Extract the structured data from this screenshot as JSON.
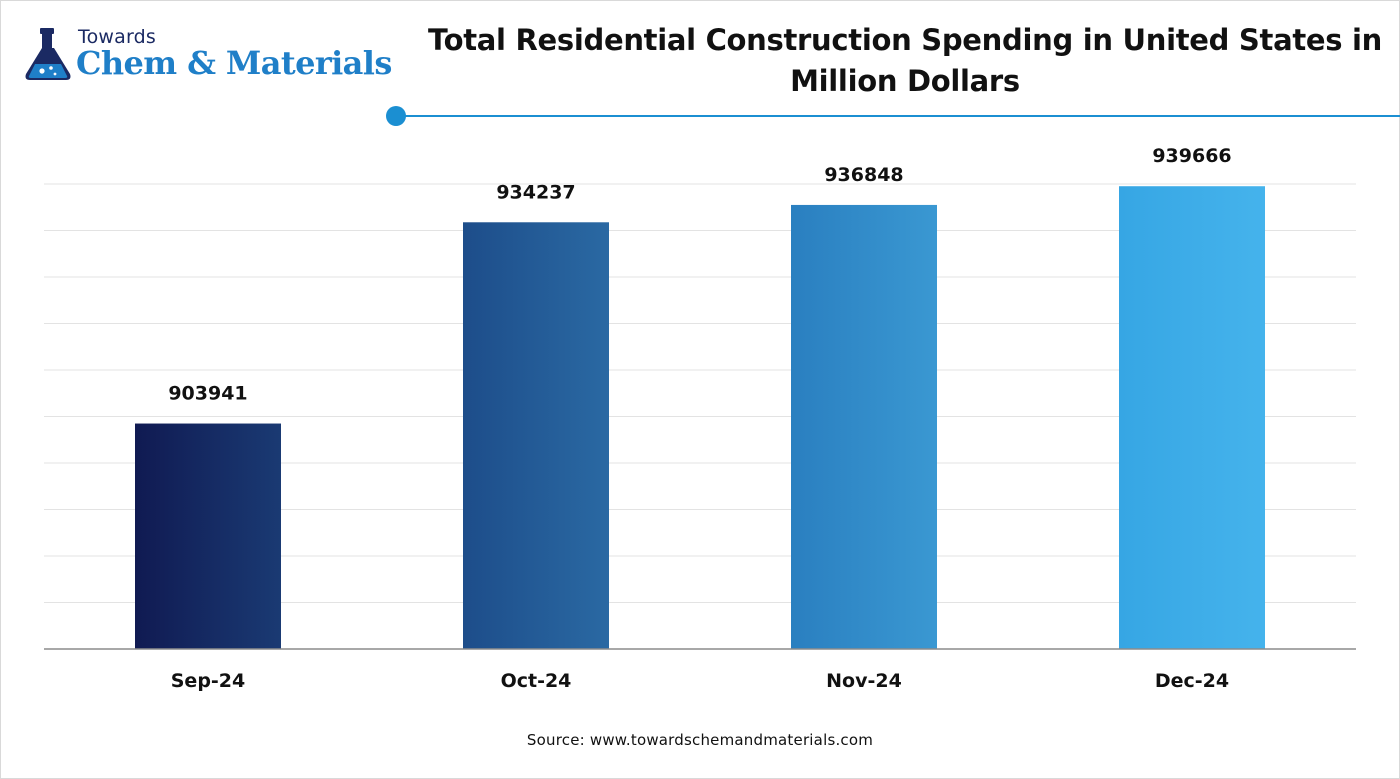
{
  "logo": {
    "small_text": "Towards",
    "big_text": "Chem & Materials"
  },
  "title": "Total Residential Construction Spending in United States in Million Dollars",
  "source": "Source: www.towardschemandmaterials.com",
  "colors": {
    "accent": "#1b8fd2",
    "bar_colors": [
      [
        "#101a52",
        "#1a3a73"
      ],
      [
        "#1d4d8a",
        "#2a69a3"
      ],
      [
        "#2a7fc0",
        "#3a98d2"
      ],
      [
        "#36a6e4",
        "#45b3ec"
      ]
    ],
    "grid": "#e3e3e3",
    "axis": "#8c8c8c"
  },
  "chart_data": {
    "type": "bar",
    "title": "Total Residential Construction Spending in United States in Million Dollars",
    "xlabel": "",
    "ylabel": "",
    "categories": [
      "Sep-24",
      "Oct-24",
      "Nov-24",
      "Dec-24"
    ],
    "values": [
      903941,
      934237,
      936848,
      939666
    ],
    "ylim": [
      870000,
      940000
    ],
    "grid": true,
    "gridlines": 10,
    "data_labels": [
      "903941",
      "934237",
      "936848",
      "939666"
    ]
  }
}
